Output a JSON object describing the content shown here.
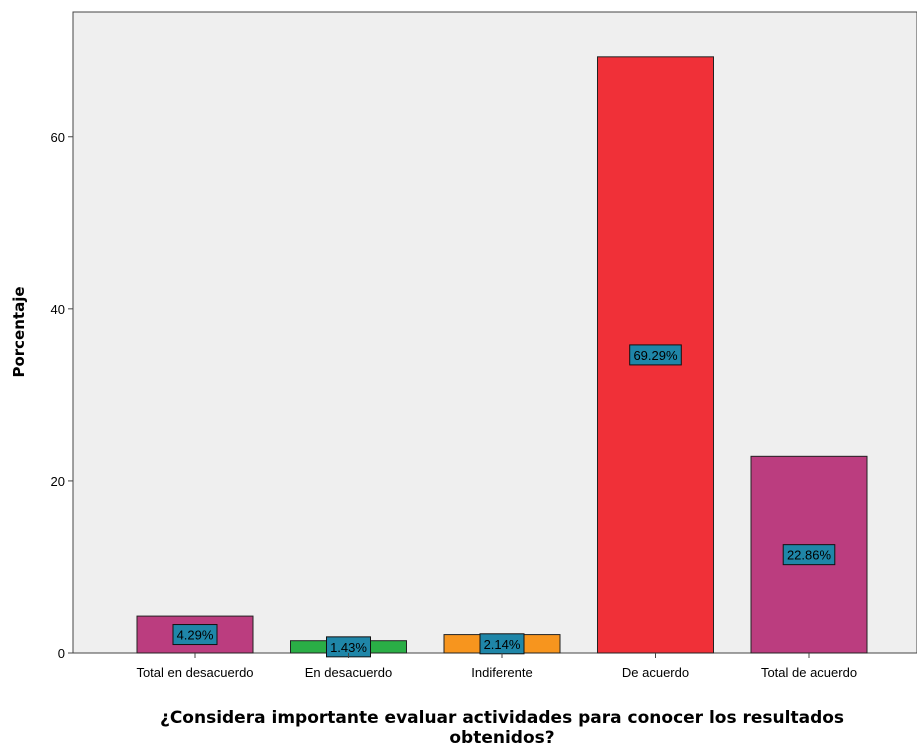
{
  "chart_data": {
    "type": "bar",
    "categories": [
      "Total en desacuerdo",
      "En desacuerdo",
      "Indiferente",
      "De acuerdo",
      "Total de acuerdo"
    ],
    "values": [
      4.29,
      1.43,
      2.14,
      69.29,
      22.86
    ],
    "data_labels": [
      "4.29%",
      "1.43%",
      "2.14%",
      "69.29%",
      "22.86%"
    ],
    "bar_colors": [
      "#bb3d7f",
      "#2aae46",
      "#f7951e",
      "#f03038",
      "#bb3d7f"
    ],
    "label_box_color": "#1f86a8",
    "plot_background": "#efefef",
    "ylabel": "Porcentaje",
    "xlabel_lines": [
      "¿Considera importante evaluar actividades para conocer los resultados",
      "obtenidos?"
    ],
    "yticks": [
      0,
      20,
      40,
      60
    ],
    "ylim": [
      0,
      74.5
    ],
    "grid": false
  }
}
